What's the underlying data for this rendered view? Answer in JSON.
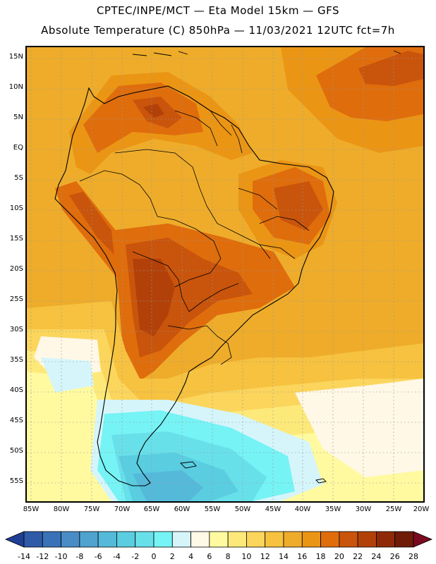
{
  "header": {
    "line1": "CPTEC/INPE/MCT —  Eta Model 15km — GFS",
    "line2": "Absolute Temperature (C) 850hPa — 11/03/2021 12UTC fct=7h"
  },
  "axes": {
    "latitude_labels": [
      "15N",
      "10N",
      "5N",
      "EQ",
      "5S",
      "10S",
      "15S",
      "20S",
      "25S",
      "30S",
      "35S",
      "40S",
      "45S",
      "50S",
      "55S"
    ],
    "longitude_labels": [
      "85W",
      "80W",
      "75W",
      "70W",
      "65W",
      "60W",
      "55W",
      "50W",
      "45W",
      "40W",
      "35W",
      "30W",
      "25W",
      "20W"
    ]
  },
  "colorbar": {
    "labels": [
      "-14",
      "-12",
      "-10",
      "-8",
      "-6",
      "-4",
      "-2",
      "0",
      "2",
      "4",
      "6",
      "8",
      "10",
      "12",
      "14",
      "16",
      "18",
      "20",
      "22",
      "24",
      "26",
      "28"
    ],
    "colors": [
      "#1f3f95",
      "#2e5aa8",
      "#3a72b8",
      "#4a8cc6",
      "#4fa3cf",
      "#55b9d9",
      "#5acde0",
      "#68e0ea",
      "#76f3f5",
      "#d5f5fb",
      "#fff8e6",
      "#fffaa0",
      "#fde97a",
      "#fbd55c",
      "#f6c23f",
      "#eeac2a",
      "#eb9515",
      "#df6d0c",
      "#c9540b",
      "#b24109",
      "#8f2a08",
      "#6f1b08",
      "#7a0a1f"
    ]
  },
  "map": {
    "colors": {
      "background": "#eeac2a",
      "t18": "#eb9515",
      "t20": "#df6d0c",
      "t22": "#c9540b",
      "t24": "#b24109",
      "t16": "#f6c23f",
      "t14": "#fbd55c",
      "t12": "#fde97a",
      "t10": "#fffaa0",
      "t8": "#fff8e6",
      "t6": "#d5f5fb",
      "t4": "#76f3f5",
      "t2": "#68e0ea",
      "t0": "#5acde0",
      "tm2": "#55b9d9"
    }
  }
}
